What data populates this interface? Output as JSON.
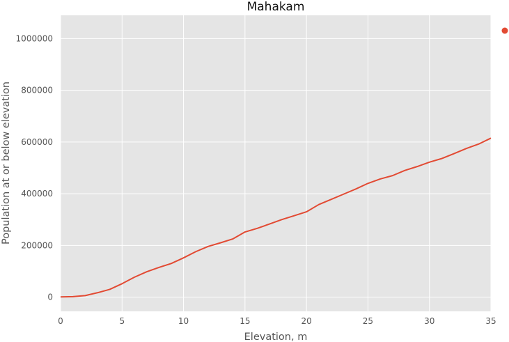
{
  "chart_data": {
    "type": "line",
    "title": "Mahakam",
    "xlabel": "Elevation, m",
    "ylabel": "Population at or below elevation",
    "xlim": [
      0,
      35
    ],
    "ylim": [
      -55000,
      1090000
    ],
    "xticks": [
      0,
      5,
      10,
      15,
      20,
      25,
      30,
      35
    ],
    "yticks": [
      0,
      200000,
      400000,
      600000,
      800000,
      1000000
    ],
    "xtick_labels": [
      "0",
      "5",
      "10",
      "15",
      "20",
      "25",
      "30",
      "35"
    ],
    "ytick_labels": [
      "0",
      "200000",
      "400000",
      "600000",
      "800000",
      "1000000"
    ],
    "grid": true,
    "legend_position": "outside-right",
    "colors": {
      "background": "#e5e5e5",
      "grid": "#ffffff",
      "line": "#e24a33",
      "text": "#555555"
    },
    "series": [
      {
        "name": "",
        "x": [
          0,
          1,
          2,
          3,
          4,
          5,
          6,
          7,
          8,
          9,
          10,
          11,
          12,
          13,
          14,
          15,
          16,
          17,
          18,
          19,
          20,
          21,
          22,
          23,
          24,
          25,
          26,
          27,
          28,
          29,
          30,
          31,
          32,
          33,
          34,
          35
        ],
        "values": [
          1000,
          2000,
          6000,
          17000,
          30000,
          52000,
          77000,
          98000,
          115000,
          130000,
          152000,
          176000,
          196000,
          210000,
          225000,
          252000,
          266000,
          283000,
          300000,
          315000,
          330000,
          358000,
          378000,
          398000,
          418000,
          440000,
          457000,
          470000,
          490000,
          505000,
          522000,
          536000,
          555000,
          575000,
          592000,
          615000
        ]
      }
    ]
  }
}
